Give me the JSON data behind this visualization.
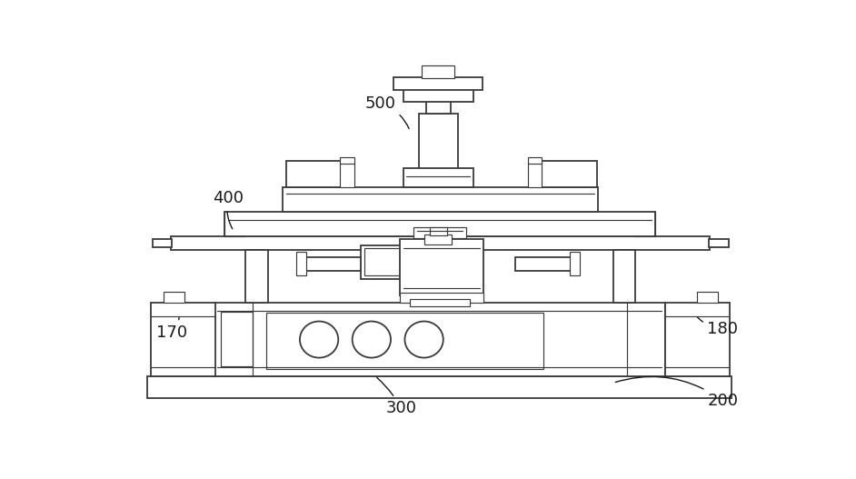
{
  "bg_color": "#ffffff",
  "lc": "#3a3a3a",
  "lw": 1.3,
  "tlw": 0.85,
  "label_fs": 13,
  "label_color": "#1a1a1a"
}
